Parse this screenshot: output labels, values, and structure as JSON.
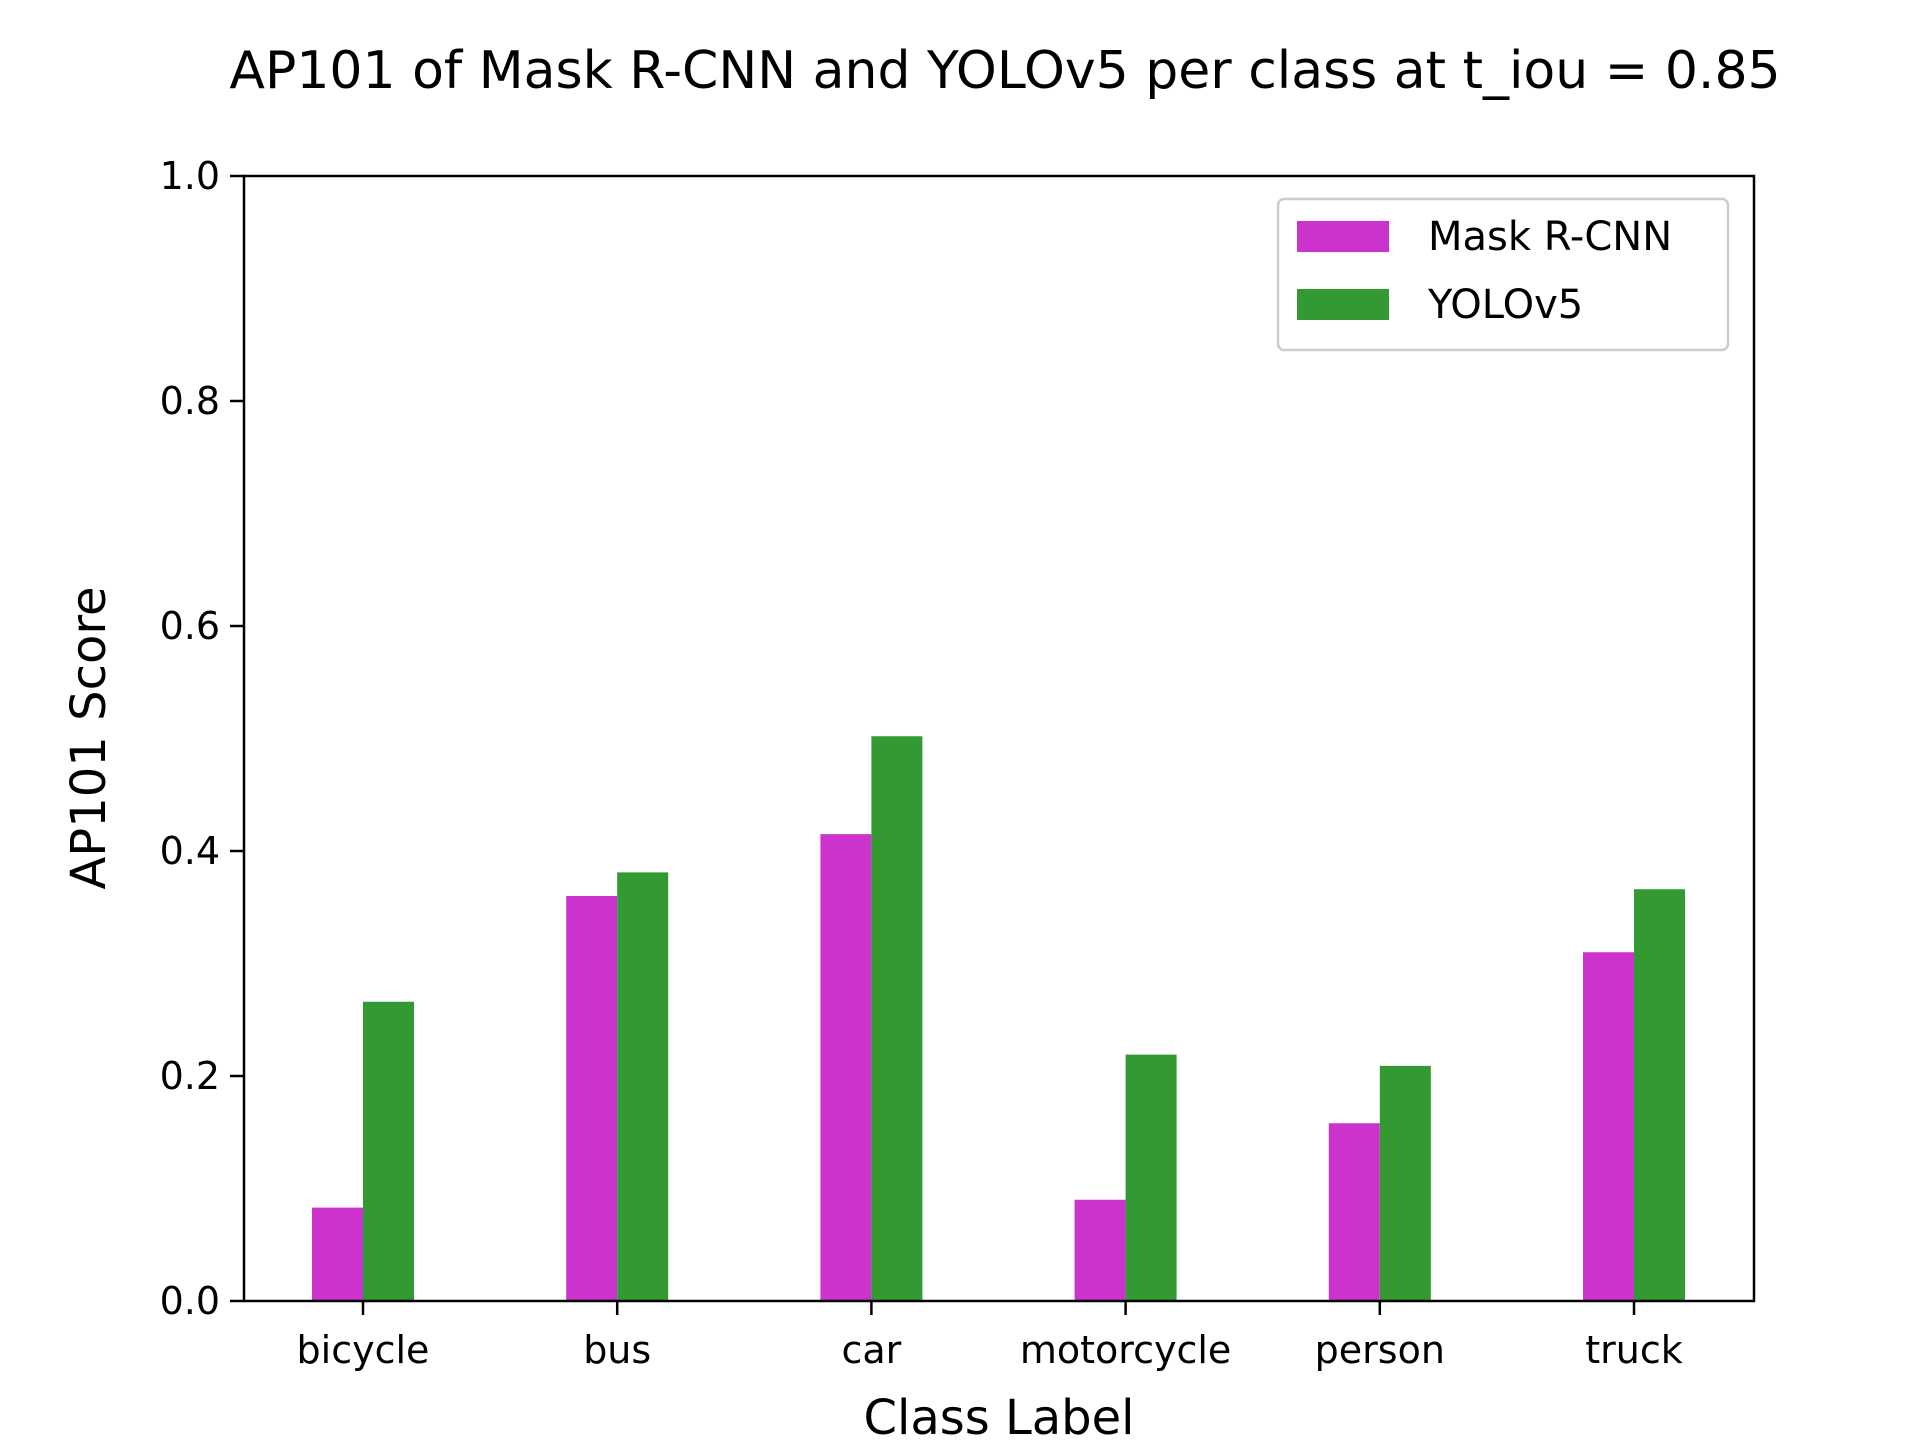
{
  "chart_data": {
    "type": "bar",
    "title": "AP101 of Mask R-CNN and YOLOv5 per class at t_iou = 0.85",
    "xlabel": "Class Label",
    "ylabel": "AP101 Score",
    "categories": [
      "bicycle",
      "bus",
      "car",
      "motorcycle",
      "person",
      "truck"
    ],
    "series": [
      {
        "name": "Mask R-CNN",
        "color": "#cc33cc",
        "values": [
          0.083,
          0.36,
          0.415,
          0.09,
          0.158,
          0.31
        ]
      },
      {
        "name": "YOLOv5",
        "color": "#339933",
        "values": [
          0.266,
          0.381,
          0.502,
          0.219,
          0.209,
          0.366
        ]
      }
    ],
    "ylim": [
      0,
      1.0
    ],
    "yticks": [
      "0.0",
      "0.2",
      "0.4",
      "0.6",
      "0.8",
      "1.0"
    ],
    "grid": false,
    "legend_position": "top-right"
  }
}
